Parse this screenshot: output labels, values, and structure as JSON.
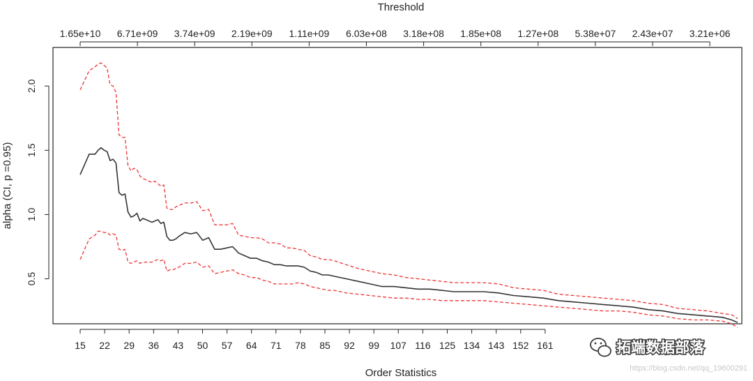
{
  "chart_data": {
    "type": "line",
    "title": "",
    "xlabel": "Order Statistics",
    "ylabel": "alpha (CI, p =0.95)",
    "top_axis_label": "Threshold",
    "top_tick_labels": [
      "1.65e+10",
      "6.71e+09",
      "3.74e+09",
      "2.19e+09",
      "1.11e+09",
      "6.03e+08",
      "3.18e+08",
      "1.85e+08",
      "1.27e+08",
      "5.38e+07",
      "2.43e+07",
      "3.21e+06"
    ],
    "x_tick_labels": [
      "15",
      "22",
      "29",
      "36",
      "43",
      "50",
      "57",
      "64",
      "71",
      "78",
      "85",
      "92",
      "99",
      "107",
      "116",
      "125",
      "134",
      "143",
      "152",
      "161"
    ],
    "y_ticks": [
      0.5,
      1.0,
      1.5,
      2.0
    ],
    "y_tick_labels": [
      "0.5",
      "1.0",
      "1.5",
      "2.0"
    ],
    "xlim": [
      15,
      235
    ],
    "ylim": [
      0.15,
      2.3
    ],
    "grid": false,
    "series": [
      {
        "role": "estimate",
        "color": "#333333",
        "dash": "solid",
        "x": [
          15,
          18,
          20,
          21,
          22,
          23,
          24,
          25,
          26,
          27,
          28,
          29,
          30,
          31,
          32,
          33,
          34,
          35,
          36,
          37,
          38,
          39,
          40,
          41,
          42,
          43,
          44,
          45,
          46,
          47,
          48,
          50,
          52,
          54,
          56,
          58,
          60,
          62,
          64,
          66,
          68,
          70,
          72,
          74,
          76,
          78,
          80,
          82,
          84,
          86,
          88,
          90,
          92,
          94,
          96,
          98,
          100,
          104,
          108,
          112,
          116,
          120,
          124,
          128,
          132,
          136,
          140,
          145,
          150,
          155,
          160,
          165,
          170,
          175,
          180,
          185,
          190,
          195,
          200,
          205,
          210,
          215,
          220,
          225,
          230,
          233,
          235
        ],
        "values": [
          1.31,
          1.47,
          1.47,
          1.5,
          1.52,
          1.5,
          1.49,
          1.42,
          1.43,
          1.4,
          1.17,
          1.15,
          1.16,
          1.02,
          0.98,
          0.99,
          1.01,
          0.95,
          0.97,
          0.96,
          0.95,
          0.94,
          0.95,
          0.96,
          0.93,
          0.94,
          0.83,
          0.8,
          0.8,
          0.81,
          0.83,
          0.86,
          0.85,
          0.86,
          0.8,
          0.82,
          0.73,
          0.73,
          0.74,
          0.75,
          0.7,
          0.68,
          0.66,
          0.66,
          0.64,
          0.63,
          0.61,
          0.61,
          0.6,
          0.6,
          0.6,
          0.59,
          0.56,
          0.55,
          0.53,
          0.53,
          0.52,
          0.5,
          0.48,
          0.46,
          0.44,
          0.44,
          0.43,
          0.42,
          0.42,
          0.41,
          0.4,
          0.4,
          0.4,
          0.39,
          0.37,
          0.36,
          0.35,
          0.33,
          0.32,
          0.31,
          0.3,
          0.29,
          0.28,
          0.26,
          0.25,
          0.23,
          0.22,
          0.21,
          0.2,
          0.18,
          0.16
        ]
      },
      {
        "role": "upper-ci",
        "color": "#ee3333",
        "dash": "dashed",
        "x": [
          15,
          18,
          20,
          21,
          22,
          23,
          24,
          25,
          26,
          27,
          28,
          29,
          30,
          31,
          32,
          33,
          34,
          35,
          36,
          37,
          38,
          39,
          40,
          41,
          42,
          43,
          44,
          45,
          46,
          47,
          48,
          50,
          52,
          54,
          56,
          58,
          60,
          62,
          64,
          66,
          68,
          70,
          72,
          74,
          76,
          78,
          80,
          82,
          84,
          86,
          88,
          90,
          92,
          94,
          96,
          98,
          100,
          104,
          108,
          112,
          116,
          120,
          124,
          128,
          132,
          136,
          140,
          145,
          150,
          155,
          160,
          165,
          170,
          175,
          180,
          185,
          190,
          195,
          200,
          205,
          210,
          215,
          220,
          225,
          230,
          233,
          235
        ],
        "values": [
          1.97,
          2.12,
          2.15,
          2.17,
          2.18,
          2.16,
          2.14,
          2.01,
          2.0,
          1.95,
          1.62,
          1.6,
          1.6,
          1.38,
          1.34,
          1.36,
          1.35,
          1.3,
          1.28,
          1.27,
          1.26,
          1.25,
          1.26,
          1.24,
          1.22,
          1.23,
          1.05,
          1.04,
          1.04,
          1.06,
          1.07,
          1.09,
          1.09,
          1.1,
          1.03,
          1.04,
          0.92,
          0.92,
          0.92,
          0.93,
          0.84,
          0.83,
          0.82,
          0.82,
          0.81,
          0.78,
          0.78,
          0.77,
          0.74,
          0.74,
          0.73,
          0.72,
          0.68,
          0.67,
          0.65,
          0.65,
          0.64,
          0.61,
          0.58,
          0.56,
          0.54,
          0.53,
          0.51,
          0.5,
          0.49,
          0.48,
          0.47,
          0.47,
          0.47,
          0.46,
          0.43,
          0.42,
          0.41,
          0.38,
          0.37,
          0.36,
          0.35,
          0.34,
          0.33,
          0.31,
          0.3,
          0.27,
          0.26,
          0.25,
          0.23,
          0.22,
          0.19
        ]
      },
      {
        "role": "lower-ci",
        "color": "#ee3333",
        "dash": "dashed",
        "x": [
          15,
          18,
          20,
          21,
          22,
          23,
          24,
          25,
          26,
          27,
          28,
          29,
          30,
          31,
          32,
          33,
          34,
          35,
          36,
          37,
          38,
          39,
          40,
          41,
          42,
          43,
          44,
          45,
          46,
          47,
          48,
          50,
          52,
          54,
          56,
          58,
          60,
          62,
          64,
          66,
          68,
          70,
          72,
          74,
          76,
          78,
          80,
          82,
          84,
          86,
          88,
          90,
          92,
          94,
          96,
          98,
          100,
          104,
          108,
          112,
          116,
          120,
          124,
          128,
          132,
          136,
          140,
          145,
          150,
          155,
          160,
          165,
          170,
          175,
          180,
          185,
          190,
          195,
          200,
          205,
          210,
          215,
          220,
          225,
          230,
          233,
          235
        ],
        "values": [
          0.65,
          0.81,
          0.84,
          0.87,
          0.87,
          0.86,
          0.86,
          0.84,
          0.85,
          0.84,
          0.73,
          0.72,
          0.73,
          0.63,
          0.62,
          0.63,
          0.64,
          0.62,
          0.63,
          0.63,
          0.63,
          0.63,
          0.64,
          0.65,
          0.64,
          0.65,
          0.56,
          0.57,
          0.57,
          0.58,
          0.59,
          0.62,
          0.62,
          0.63,
          0.59,
          0.6,
          0.54,
          0.55,
          0.56,
          0.57,
          0.54,
          0.53,
          0.51,
          0.51,
          0.49,
          0.48,
          0.46,
          0.46,
          0.46,
          0.46,
          0.47,
          0.46,
          0.44,
          0.43,
          0.42,
          0.41,
          0.41,
          0.39,
          0.38,
          0.37,
          0.36,
          0.35,
          0.35,
          0.34,
          0.34,
          0.33,
          0.33,
          0.33,
          0.33,
          0.32,
          0.31,
          0.3,
          0.29,
          0.28,
          0.27,
          0.26,
          0.25,
          0.25,
          0.24,
          0.22,
          0.21,
          0.19,
          0.18,
          0.18,
          0.17,
          0.15,
          0.12
        ]
      }
    ]
  },
  "watermark": {
    "brand_text": "拓端数据部落",
    "url_text": "https://blog.csdn.net/qq_19600291"
  }
}
